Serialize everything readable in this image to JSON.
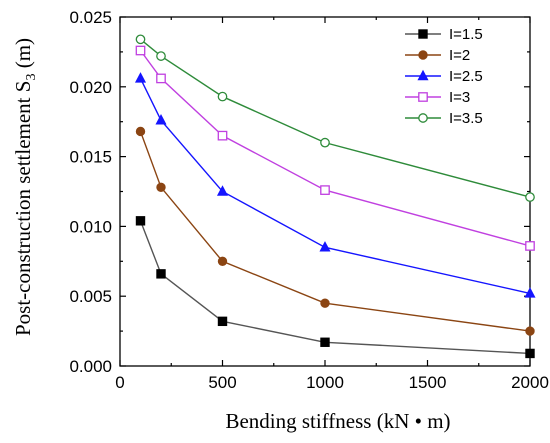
{
  "chart_data": {
    "type": "line",
    "xlabel": "Bending stiffness (kN • m)",
    "ylabel_main": "Post-construction settlement S",
    "ylabel_sub": "3",
    "ylabel_unit": " (m)",
    "xlim": [
      0,
      2000
    ],
    "ylim": [
      0,
      0.025
    ],
    "xticks": [
      0,
      500,
      1000,
      1500,
      2000
    ],
    "xtick_labels": [
      "0",
      "500",
      "1000",
      "1500",
      "2000"
    ],
    "yticks": [
      0,
      0.005,
      0.01,
      0.015,
      0.02,
      0.025
    ],
    "ytick_labels": [
      "0.000",
      "0.005",
      "0.010",
      "0.015",
      "0.020",
      "0.025"
    ],
    "grid": false,
    "legend_position": "top-right",
    "x": [
      100,
      200,
      500,
      1000,
      2000
    ],
    "series": [
      {
        "name": "I=1.5",
        "marker": "square-filled",
        "color": "#000000",
        "line_color": "#555555",
        "values": [
          0.0104,
          0.0066,
          0.0032,
          0.0017,
          0.0009
        ]
      },
      {
        "name": "I=2",
        "marker": "circle-filled",
        "color": "#8B4513",
        "line_color": "#8B4513",
        "values": [
          0.0168,
          0.0128,
          0.0075,
          0.0045,
          0.0025
        ]
      },
      {
        "name": "I=2.5",
        "marker": "triangle-filled",
        "color": "#1515FF",
        "line_color": "#1515FF",
        "values": [
          0.0206,
          0.0176,
          0.0125,
          0.0085,
          0.0052
        ]
      },
      {
        "name": "I=3",
        "marker": "square-open",
        "color": "#C040E0",
        "line_color": "#C040E0",
        "values": [
          0.0226,
          0.0206,
          0.0165,
          0.0126,
          0.0086
        ]
      },
      {
        "name": "I=3.5",
        "marker": "circle-open",
        "color": "#2E8B3A",
        "line_color": "#2E8B3A",
        "values": [
          0.0234,
          0.0222,
          0.0193,
          0.016,
          0.0121
        ]
      }
    ]
  }
}
